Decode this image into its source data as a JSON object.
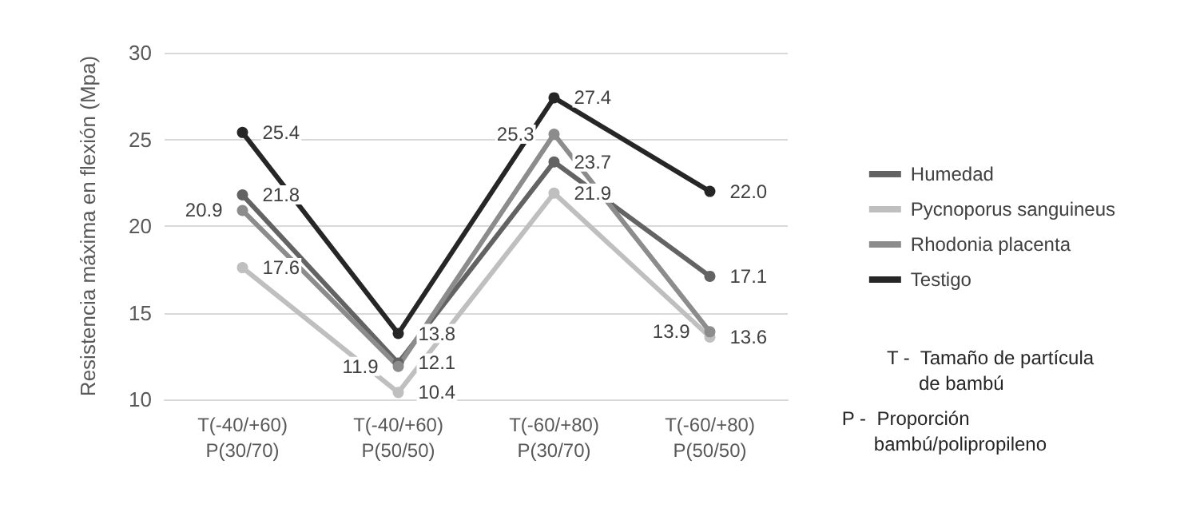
{
  "chart_data": {
    "type": "line",
    "ylabel": "Resistencia máxima en flexión (Mpa)",
    "categories": [
      "T(-40/+60)\nP(30/70)",
      "T(-40/+60)\nP(50/50)",
      "T(-60/+80)\nP(30/70)",
      "T(-60/+80)\nP(50/50)"
    ],
    "series": [
      {
        "name": "Humedad",
        "color": "#636363",
        "values": [
          21.8,
          12.1,
          23.7,
          17.1
        ],
        "value_labels": [
          "21.8",
          "12.1",
          "23.7",
          "17.1"
        ]
      },
      {
        "name": "Pycnoporus sanguineus",
        "color": "#bfbfbf",
        "values": [
          17.6,
          10.4,
          21.9,
          13.6
        ],
        "value_labels": [
          "17.6",
          "10.4",
          "21.9",
          "13.6"
        ]
      },
      {
        "name": "Rhodonia placenta",
        "color": "#8c8c8c",
        "values": [
          20.9,
          11.9,
          25.3,
          13.9
        ],
        "value_labels": [
          "20.9",
          "11.9",
          "25.3",
          "13.9"
        ]
      },
      {
        "name": "Testigo",
        "color": "#262626",
        "values": [
          25.4,
          13.8,
          27.4,
          22.0
        ],
        "value_labels": [
          "25.4",
          "13.8",
          "27.4",
          "22.0"
        ]
      }
    ],
    "ylim": [
      10,
      30
    ],
    "yticks": [
      10,
      15,
      20,
      25,
      30
    ],
    "grid": "y",
    "legend": "right",
    "marker": "circle",
    "line_style": "solid",
    "annotations": [
      "T -  Tamaño de partícula\n      de bambú",
      "P -  Proporción\n      bambú/polipropileno"
    ]
  }
}
